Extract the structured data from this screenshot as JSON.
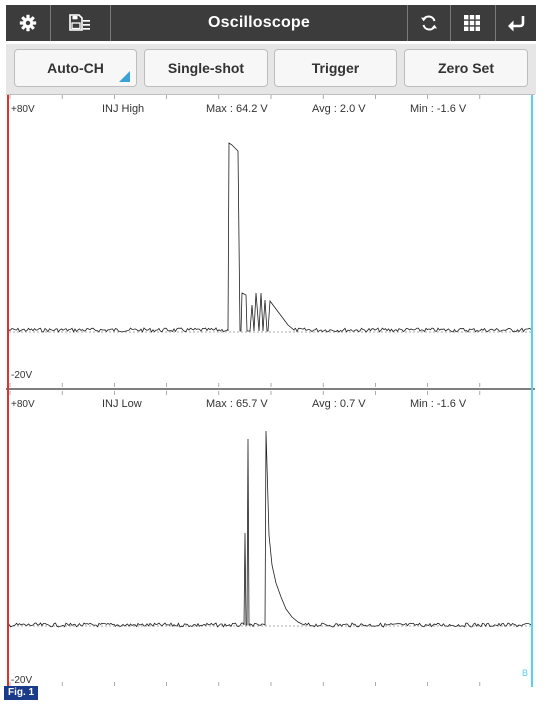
{
  "header": {
    "title": "Oscilloscope",
    "icons": [
      "gear-icon",
      "save-list-icon",
      "refresh-icon",
      "grid-icon",
      "return-icon"
    ]
  },
  "buttons": {
    "auto_ch": "Auto-CH",
    "single_shot": "Single-shot",
    "trigger": "Trigger",
    "zero_set": "Zero Set"
  },
  "channels": [
    {
      "y_max_label": "+80V",
      "y_min_label": "-20V",
      "name": "INJ High",
      "max": "Max : 64.2 V",
      "avg": "Avg : 2.0 V",
      "min": "Min : -1.6 V"
    },
    {
      "y_max_label": "+80V",
      "y_min_label": "-20V",
      "name": "INJ Low",
      "max": "Max : 65.7 V",
      "avg": "Avg : 0.7 V",
      "min": "Min : -1.6 V"
    }
  ],
  "cursor_b_label": "B",
  "figure_label": "Fig. 1",
  "colors": {
    "toolbar_bg": "#3c3c3c",
    "cursor_a": "#e03030",
    "cursor_b": "#55d4ea",
    "trace": "#202020",
    "fig_label_bg": "#1a3a8a"
  }
}
